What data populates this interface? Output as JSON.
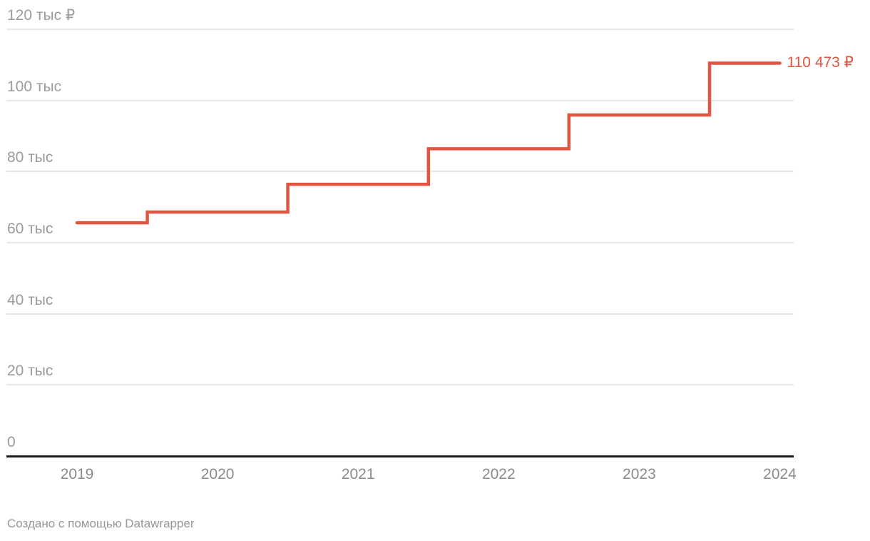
{
  "chart_data": {
    "type": "line",
    "step_style": "step-center",
    "title": "",
    "x": [
      "2019",
      "2020",
      "2021",
      "2022",
      "2023",
      "2024"
    ],
    "series": [
      {
        "name": "value_rub",
        "values": [
          65600,
          68600,
          76400,
          86400,
          95900,
          110473
        ]
      }
    ],
    "end_label": "110 473 ₽",
    "unit": "₽",
    "ylim": [
      0,
      120000
    ],
    "y_ticks": [
      {
        "value": 0,
        "label": "0"
      },
      {
        "value": 20000,
        "label": "20 тыс"
      },
      {
        "value": 40000,
        "label": "40 тыс"
      },
      {
        "value": 60000,
        "label": "60 тыс"
      },
      {
        "value": 80000,
        "label": "80 тыс"
      },
      {
        "value": 100000,
        "label": "100 тыс"
      },
      {
        "value": 120000,
        "label": "120 тыс ₽"
      }
    ],
    "grid": "horizontal",
    "legend": "none",
    "line_color": "#e15643",
    "gridline_color": "#e7e7e7",
    "axis_color": "#1d1d1d",
    "tick_label_color": "#9b9b9b"
  },
  "footer": {
    "attribution": "Создано с помощью Datawrapper"
  }
}
